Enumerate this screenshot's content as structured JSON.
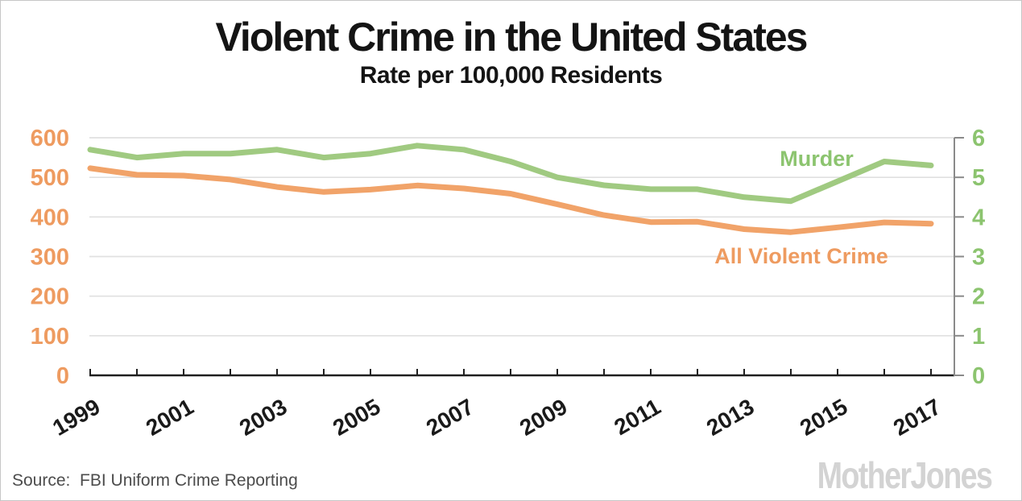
{
  "header": {
    "title": "Violent Crime in the United States",
    "subtitle": "Rate per 100,000 Residents"
  },
  "footer": {
    "source": "Source:  FBI Uniform Crime Reporting",
    "logo": "MotherJones"
  },
  "colors": {
    "orange_line": "#f1a369",
    "orange_text": "#ee9b60",
    "green_line": "#a0ca81",
    "green_text": "#8cc46f",
    "gridline": "#e0e0e0",
    "axis_dark": "#1f1f1f",
    "axis_gray": "#8a8a8a"
  },
  "chart_data": {
    "type": "line",
    "title": "Violent Crime in the United States",
    "subtitle": "Rate per 100,000 Residents",
    "x": [
      1999,
      2000,
      2001,
      2002,
      2003,
      2004,
      2005,
      2006,
      2007,
      2008,
      2009,
      2010,
      2011,
      2012,
      2013,
      2014,
      2015,
      2016,
      2017
    ],
    "x_tick_labels": [
      "1999",
      "2001",
      "2003",
      "2005",
      "2007",
      "2009",
      "2011",
      "2013",
      "2015",
      "2017"
    ],
    "left_axis": {
      "min": 0,
      "max": 600,
      "ticks": [
        0,
        100,
        200,
        300,
        400,
        500,
        600
      ],
      "color": "#ee9b60"
    },
    "right_axis": {
      "min": 0,
      "max": 6,
      "ticks": [
        0,
        1,
        2,
        3,
        4,
        5,
        6
      ],
      "color": "#8cc46f"
    },
    "grid": true,
    "legend_position": "inline-labels",
    "series": [
      {
        "name": "Murder",
        "axis": "right",
        "color": "#a0ca81",
        "label_color": "#8cc46f",
        "values": [
          5.7,
          5.5,
          5.6,
          5.6,
          5.7,
          5.5,
          5.6,
          5.8,
          5.7,
          5.4,
          5.0,
          4.8,
          4.7,
          4.7,
          4.5,
          4.4,
          4.9,
          5.4,
          5.3
        ]
      },
      {
        "name": "All Violent Crime",
        "axis": "left",
        "color": "#f1a369",
        "label_color": "#ee9b60",
        "values": [
          523.0,
          506.5,
          504.5,
          494.4,
          475.8,
          463.2,
          469.0,
          479.3,
          471.8,
          458.6,
          431.9,
          404.5,
          387.1,
          387.8,
          369.1,
          361.6,
          373.7,
          386.3,
          382.9
        ]
      }
    ]
  }
}
